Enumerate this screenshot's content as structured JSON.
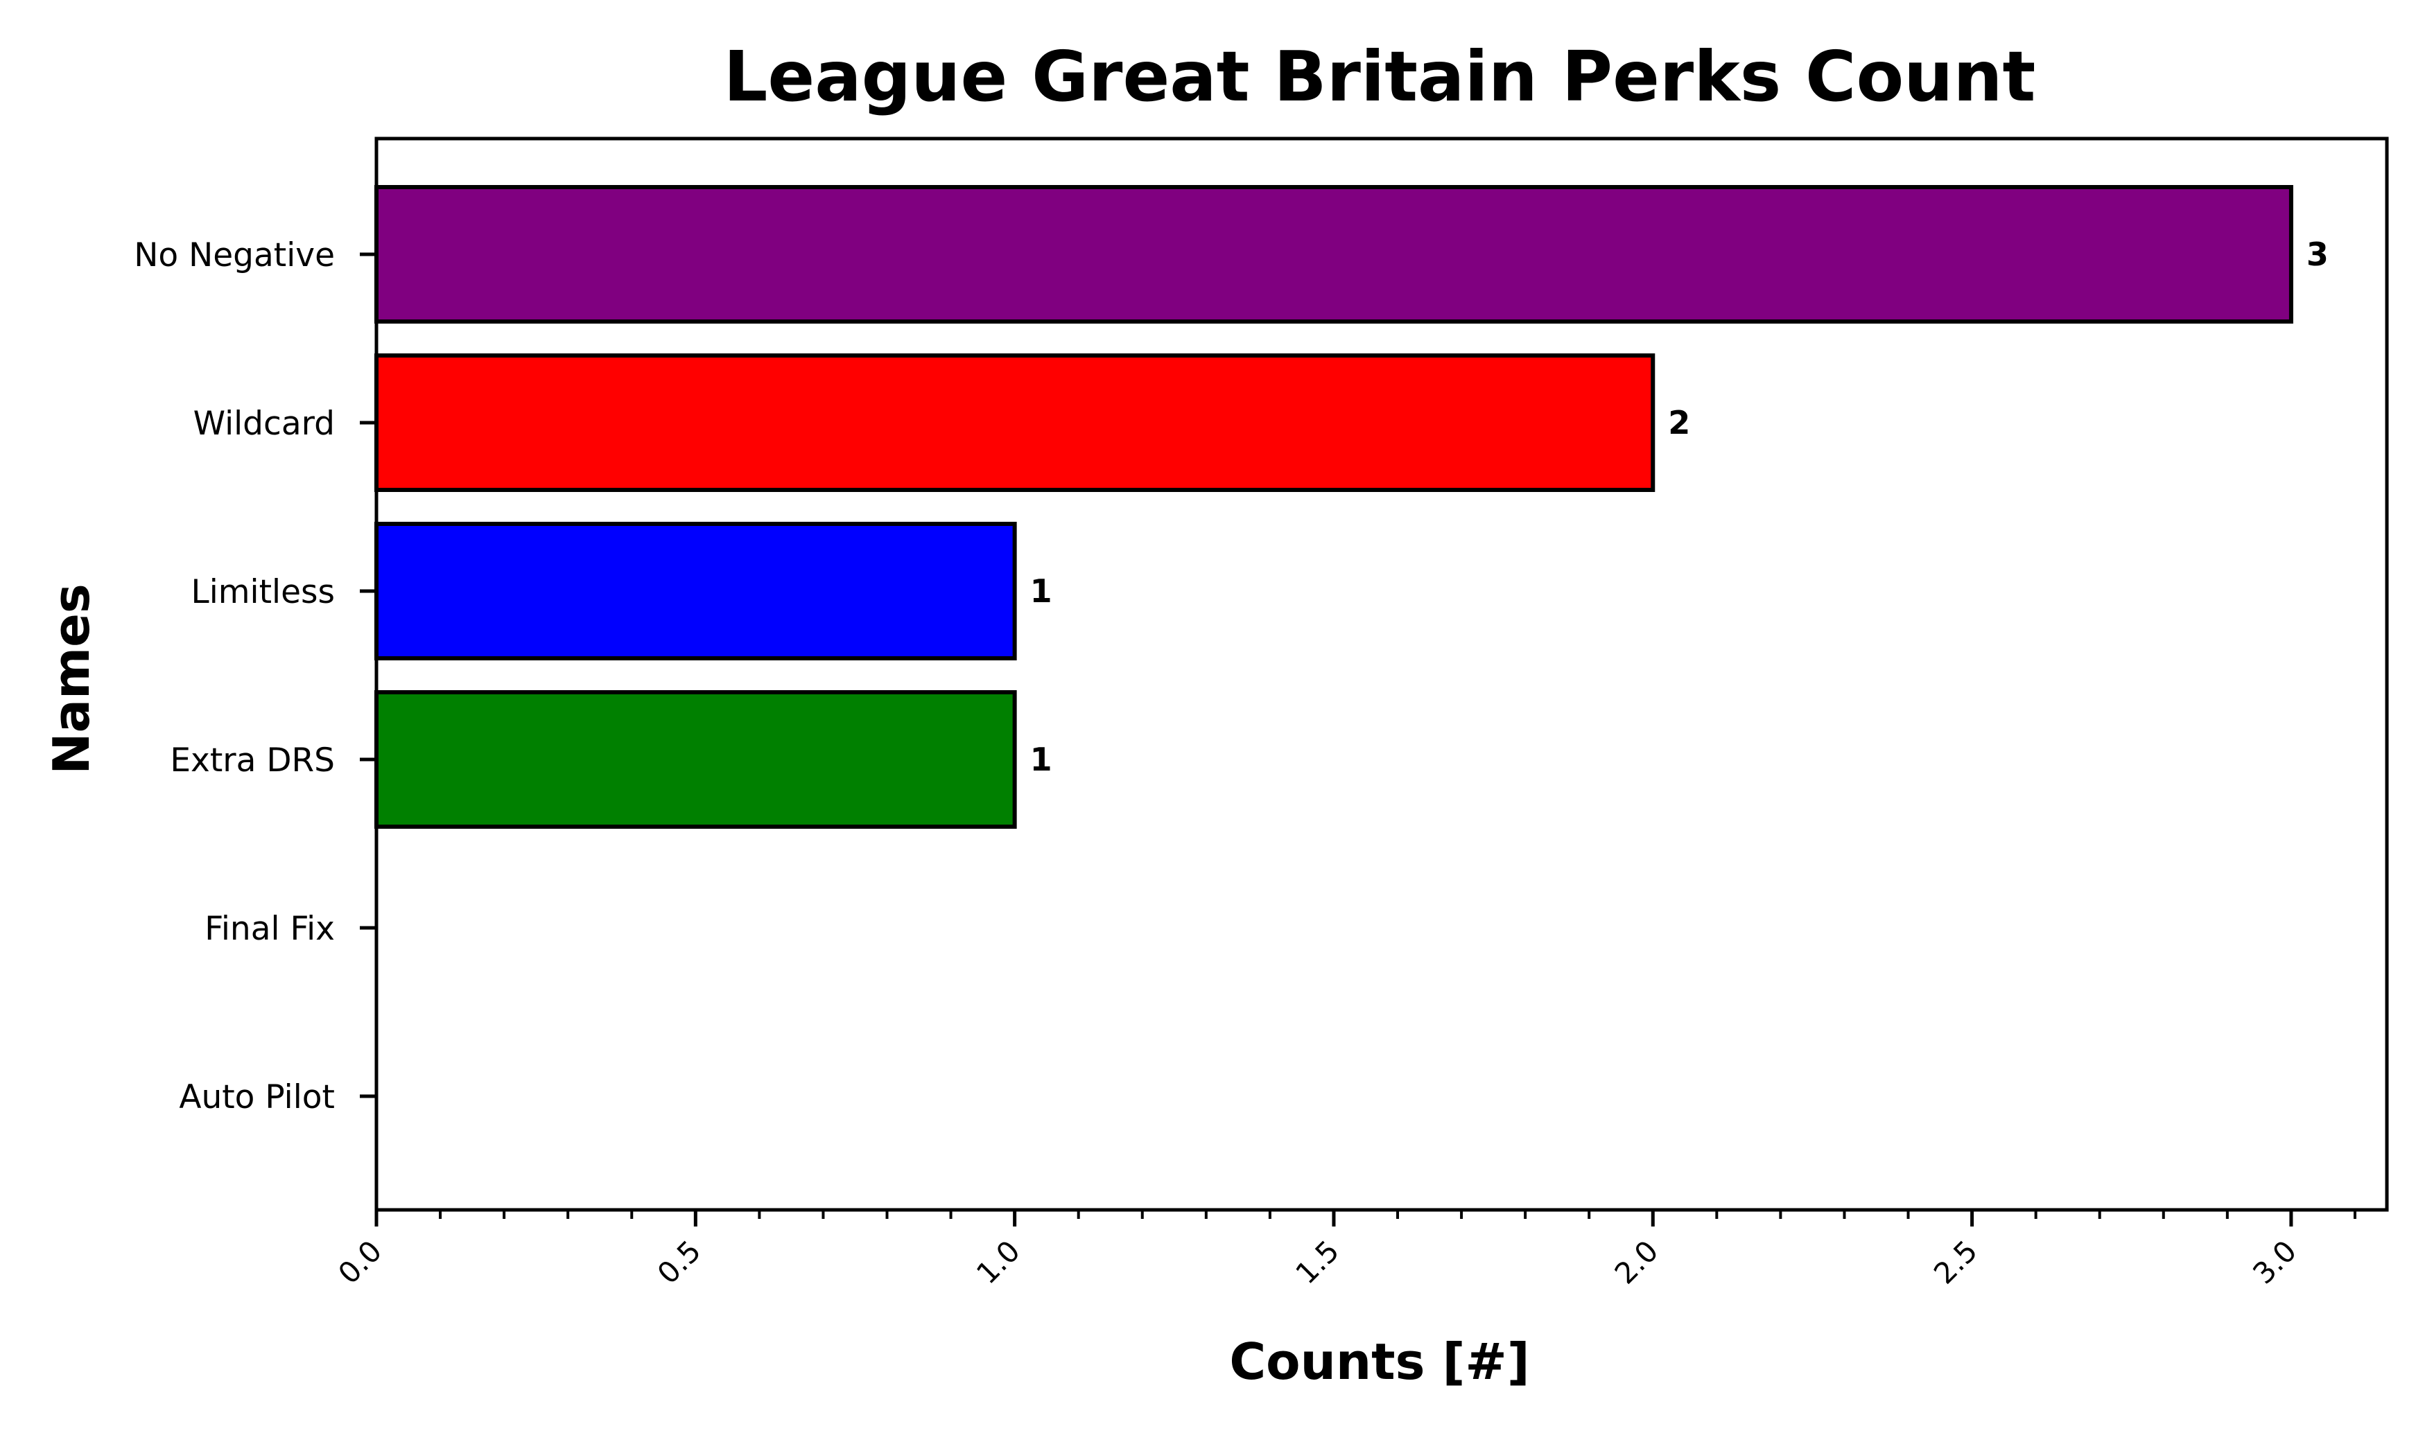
{
  "chart_data": {
    "type": "bar",
    "orientation": "horizontal",
    "title": "League Great Britain Perks Count",
    "xlabel": "Counts [#]",
    "ylabel": "Names",
    "categories": [
      "No Negative",
      "Wildcard",
      "Limitless",
      "Extra DRS",
      "Final Fix",
      "Auto Pilot"
    ],
    "values": [
      3,
      2,
      1,
      1,
      0,
      0
    ],
    "value_labels": [
      "3",
      "2",
      "1",
      "1",
      "",
      ""
    ],
    "colors": [
      "#800080",
      "#ff0000",
      "#0000ff",
      "#008000",
      "#ffa500",
      "#ffc0cb"
    ],
    "xlim": [
      0,
      3.15
    ],
    "xticks": [
      0.0,
      0.5,
      1.0,
      1.5,
      2.0,
      2.5,
      3.0
    ],
    "xtick_labels": [
      "0.0",
      "0.5",
      "1.0",
      "1.5",
      "2.0",
      "2.5",
      "3.0"
    ],
    "xtick_rotation": 45,
    "minor_ticks": true,
    "grid": false,
    "legend": "none"
  }
}
